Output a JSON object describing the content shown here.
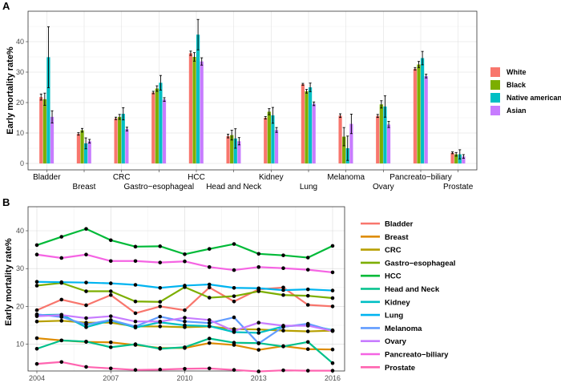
{
  "chart_data": [
    {
      "panel_label": "A",
      "type": "bar",
      "ylabel": "Early mortality rate%",
      "xlabel": "",
      "ylim": [
        0,
        50
      ],
      "yticks": [
        "0",
        "10",
        "20",
        "30",
        "40"
      ],
      "grid": true,
      "legend_position": "right",
      "categories": [
        "Bladder",
        "Breast",
        "CRC",
        "Gastro−esophageal",
        "HCC",
        "Head and Neck",
        "Kidney",
        "Lung",
        "Melanoma",
        "Ovary",
        "Pancreato−biliary",
        "Prostate"
      ],
      "series": [
        {
          "name": "White",
          "color": "#F8766D",
          "values": [
            21.8,
            9.7,
            14.8,
            23.3,
            36.2,
            9.0,
            15.0,
            26.0,
            15.7,
            15.6,
            31.1,
            3.5
          ],
          "err_low": [
            20.8,
            9.3,
            14.4,
            22.9,
            35.5,
            8.4,
            14.6,
            25.7,
            15.1,
            15.1,
            30.7,
            3.2
          ],
          "err_high": [
            22.8,
            10.1,
            15.2,
            23.7,
            36.9,
            9.6,
            15.4,
            26.3,
            16.3,
            16.1,
            31.5,
            3.8
          ]
        },
        {
          "name": "Black",
          "color": "#7CAE00",
          "values": [
            21.1,
            10.9,
            15.3,
            24.6,
            35.0,
            9.3,
            17.0,
            23.7,
            8.8,
            19.4,
            32.5,
            3.0
          ],
          "err_low": [
            19.1,
            10.3,
            14.5,
            23.7,
            33.6,
            7.7,
            16.0,
            23.1,
            5.8,
            18.2,
            31.5,
            2.4
          ],
          "err_high": [
            23.1,
            11.5,
            16.1,
            25.5,
            36.4,
            10.9,
            18.0,
            24.3,
            11.8,
            20.6,
            33.5,
            3.6
          ]
        },
        {
          "name": "Native american",
          "color": "#00BFC4",
          "values": [
            34.9,
            6.6,
            16.3,
            26.5,
            42.3,
            8.2,
            15.8,
            25.0,
            5.0,
            18.7,
            34.6,
            3.0
          ],
          "err_low": [
            24.9,
            4.8,
            14.3,
            24.1,
            37.3,
            5.0,
            13.2,
            23.6,
            1.0,
            15.2,
            32.4,
            1.5
          ],
          "err_high": [
            44.9,
            8.4,
            18.3,
            28.9,
            47.3,
            11.4,
            18.4,
            26.4,
            9.0,
            22.2,
            36.8,
            4.5
          ]
        },
        {
          "name": "Asian",
          "color": "#C77CFF",
          "values": [
            15.3,
            7.3,
            11.3,
            21.0,
            33.5,
            7.3,
            11.0,
            19.6,
            13.0,
            12.8,
            28.7,
            2.3
          ],
          "err_low": [
            13.3,
            6.7,
            10.7,
            20.4,
            32.3,
            6.1,
            10.2,
            19.0,
            9.8,
            11.8,
            28.1,
            1.7
          ],
          "err_high": [
            17.3,
            7.9,
            11.9,
            21.6,
            34.7,
            8.5,
            11.8,
            20.2,
            16.2,
            13.8,
            29.3,
            2.9
          ]
        }
      ]
    },
    {
      "panel_label": "B",
      "type": "line",
      "ylabel": "Early mortality rate%",
      "xlabel": "",
      "xlim": [
        2004,
        2016
      ],
      "ylim": [
        2,
        41
      ],
      "xticks": [
        "2004",
        "2007",
        "2010",
        "2013",
        "2016"
      ],
      "yticks": [
        "10",
        "20",
        "30",
        "40"
      ],
      "grid": true,
      "legend_position": "right",
      "x": [
        2004,
        2005,
        2006,
        2007,
        2008,
        2009,
        2010,
        2011,
        2012,
        2013,
        2014,
        2015,
        2016
      ],
      "series": [
        {
          "name": "Bladder",
          "color": "#F8766D",
          "values": [
            19.0,
            21.8,
            20.3,
            23.0,
            18.2,
            20.0,
            19.0,
            25.0,
            21.3,
            24.5,
            25.0,
            20.4,
            20.0
          ]
        },
        {
          "name": "Breast",
          "color": "#DE8C00",
          "values": [
            11.6,
            11.0,
            10.6,
            10.5,
            9.8,
            9.0,
            9.0,
            10.3,
            9.8,
            8.5,
            9.5,
            8.7,
            8.6
          ]
        },
        {
          "name": "CRC",
          "color": "#B79F00",
          "values": [
            16.0,
            16.2,
            15.7,
            15.7,
            14.7,
            14.7,
            14.5,
            14.7,
            14.0,
            13.9,
            13.6,
            13.4,
            13.6
          ]
        },
        {
          "name": "Gastro−esophageal",
          "color": "#7CAE00",
          "values": [
            25.5,
            26.2,
            24.0,
            24.0,
            21.3,
            21.2,
            25.1,
            22.3,
            22.7,
            24.0,
            23.0,
            22.8,
            22.2
          ]
        },
        {
          "name": "HCC",
          "color": "#00BA38",
          "values": [
            36.2,
            38.4,
            40.5,
            37.5,
            35.8,
            35.9,
            33.8,
            35.2,
            36.5,
            33.9,
            33.5,
            32.9,
            36.0
          ]
        },
        {
          "name": "Head and Neck",
          "color": "#00C08B",
          "values": [
            8.8,
            11.0,
            10.7,
            9.2,
            10.0,
            8.8,
            9.2,
            11.5,
            10.4,
            10.3,
            9.4,
            10.6,
            5.0
          ]
        },
        {
          "name": "Kidney",
          "color": "#00BFC4",
          "values": [
            17.7,
            17.8,
            14.5,
            16.3,
            14.4,
            15.8,
            15.0,
            14.8,
            13.2,
            13.0,
            14.7,
            15.1,
            13.7
          ]
        },
        {
          "name": "Lung",
          "color": "#00B4F0",
          "values": [
            26.5,
            26.4,
            26.3,
            26.1,
            25.7,
            24.9,
            25.5,
            25.8,
            24.9,
            24.8,
            24.3,
            24.5,
            24.2
          ]
        },
        {
          "name": "Melanoma",
          "color": "#619CFF",
          "values": [
            17.9,
            17.2,
            15.2,
            16.4,
            14.7,
            17.3,
            16.0,
            15.6,
            17.1,
            10.2,
            14.6,
            15.4,
            13.5
          ]
        },
        {
          "name": "Ovary",
          "color": "#C77CFF",
          "values": [
            17.4,
            17.7,
            16.9,
            17.4,
            16.0,
            16.0,
            17.0,
            16.4,
            13.5,
            15.7,
            14.9,
            14.9,
            13.5
          ]
        },
        {
          "name": "Pancreato−biliary",
          "color": "#F564E3",
          "values": [
            33.7,
            32.8,
            33.7,
            32.0,
            32.0,
            31.6,
            31.9,
            30.4,
            29.6,
            30.4,
            30.1,
            29.7,
            29.0
          ]
        },
        {
          "name": "Prostate",
          "color": "#FF64B0",
          "values": [
            4.8,
            5.3,
            4.0,
            3.6,
            3.2,
            3.3,
            3.5,
            3.6,
            3.2,
            2.8,
            3.1,
            3.0,
            3.0
          ]
        }
      ]
    }
  ]
}
